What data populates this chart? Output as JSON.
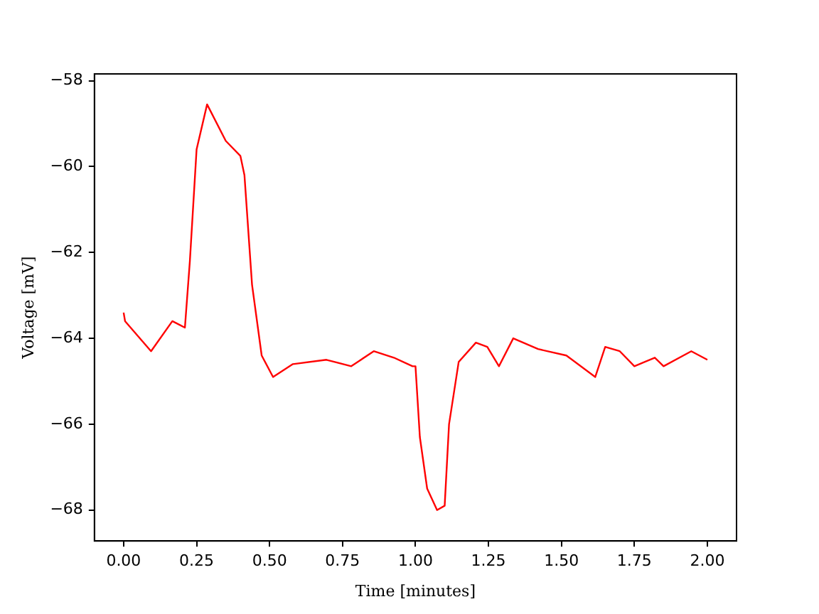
{
  "chart_data": {
    "type": "line",
    "xlabel": "Time [minutes]",
    "ylabel": "Voltage [mV]",
    "x": [
      0,
      0.005,
      0.094,
      0.167,
      0.21,
      0.227,
      0.25,
      0.286,
      0.35,
      0.4,
      0.414,
      0.44,
      0.473,
      0.512,
      0.58,
      0.695,
      0.78,
      0.857,
      0.926,
      0.99,
      1.0,
      1.015,
      1.04,
      1.074,
      1.1,
      1.115,
      1.148,
      1.207,
      1.246,
      1.286,
      1.335,
      1.42,
      1.517,
      1.616,
      1.65,
      1.7,
      1.75,
      1.82,
      1.85,
      1.945,
      2.0
    ],
    "series": [
      {
        "color": "#ff0000",
        "values": [
          -63.4,
          -63.6,
          -64.3,
          -63.6,
          -63.75,
          -62.2,
          -59.6,
          -58.55,
          -59.4,
          -59.75,
          -60.2,
          -62.75,
          -64.4,
          -64.9,
          -64.6,
          -64.5,
          -64.65,
          -64.3,
          -64.45,
          -64.65,
          -64.65,
          -66.3,
          -67.5,
          -68.0,
          -67.9,
          -66.0,
          -64.55,
          -64.1,
          -64.2,
          -64.65,
          -64.0,
          -64.25,
          -64.4,
          -64.9,
          -64.2,
          -64.3,
          -64.65,
          -64.45,
          -64.65,
          -64.3,
          -64.5
        ]
      }
    ],
    "xlim": [
      -0.1,
      2.1
    ],
    "ylim": [
      -68.72,
      -57.84
    ],
    "xticks": [
      {
        "value": 0,
        "label": "0.00"
      },
      {
        "value": 0.25,
        "label": "0.25"
      },
      {
        "value": 0.5,
        "label": "0.50"
      },
      {
        "value": 0.75,
        "label": "0.75"
      },
      {
        "value": 1,
        "label": "1.00"
      },
      {
        "value": 1.25,
        "label": "1.25"
      },
      {
        "value": 1.5,
        "label": "1.50"
      },
      {
        "value": 1.75,
        "label": "1.75"
      },
      {
        "value": 2,
        "label": "2.00"
      }
    ],
    "yticks": [
      {
        "value": -68,
        "label": "−68"
      },
      {
        "value": -66,
        "label": "−66"
      },
      {
        "value": -64,
        "label": "−64"
      },
      {
        "value": -62,
        "label": "−62"
      },
      {
        "value": -60,
        "label": "−60"
      },
      {
        "value": -58,
        "label": "−58"
      }
    ],
    "grid": false,
    "legend": false,
    "marker": "none",
    "line_style": "solid"
  }
}
